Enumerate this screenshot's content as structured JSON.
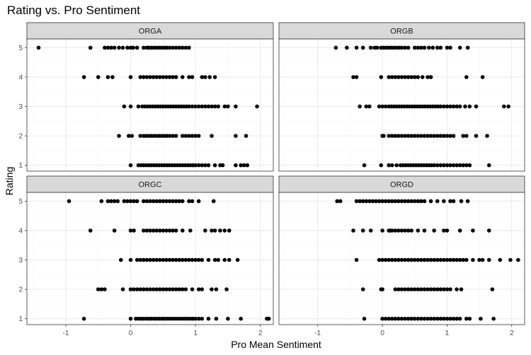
{
  "chart_data": {
    "type": "scatter",
    "title": "Rating vs. Pro Sentiment",
    "xlabel": "Pro Mean Sentiment",
    "ylabel": "Rating",
    "xlim": [
      -1.6,
      2.2
    ],
    "ylim": [
      0.8,
      5.3
    ],
    "x_ticks": [
      -1,
      0,
      1,
      2
    ],
    "x_tick_labels": [
      "-1",
      "0",
      "1",
      "2"
    ],
    "y_ticks": [
      1,
      2,
      3,
      4,
      5
    ],
    "y_tick_labels": [
      "1",
      "2",
      "3",
      "4",
      "5"
    ],
    "grid": true,
    "colors": {
      "point": "#000000",
      "strip_fill": "#d9d9d9",
      "strip_border": "#333333",
      "grid_major": "#ebebeb",
      "grid_minor": "#f4f4f4",
      "panel_border": "#333333"
    },
    "facets": [
      {
        "name": "ORGA",
        "points": [
          {
            "rating": 5,
            "x": [
              -1.42,
              -0.62,
              -0.4,
              -0.35,
              -0.3,
              -0.25,
              -0.18,
              -0.12,
              -0.05,
              0.0,
              0.04,
              0.1,
              0.2,
              0.25,
              0.28,
              0.32,
              0.36,
              0.4,
              0.44,
              0.48,
              0.52,
              0.56,
              0.6,
              0.65,
              0.7,
              0.75,
              0.8,
              0.85,
              0.9
            ]
          },
          {
            "rating": 4,
            "x": [
              -0.72,
              -0.5,
              -0.35,
              -0.28,
              0.0,
              0.15,
              0.2,
              0.25,
              0.3,
              0.35,
              0.4,
              0.45,
              0.5,
              0.55,
              0.6,
              0.65,
              0.7,
              0.8,
              0.9,
              0.95,
              1.1,
              1.15,
              1.22,
              1.3
            ]
          },
          {
            "rating": 3,
            "x": [
              -0.1,
              0.0,
              0.12,
              0.18,
              0.22,
              0.26,
              0.3,
              0.34,
              0.38,
              0.42,
              0.46,
              0.5,
              0.54,
              0.58,
              0.62,
              0.66,
              0.7,
              0.74,
              0.78,
              0.82,
              0.86,
              0.9,
              0.95,
              1.0,
              1.05,
              1.1,
              1.15,
              1.2,
              1.25,
              1.3,
              1.35,
              1.45,
              1.5,
              1.62,
              1.95
            ]
          },
          {
            "rating": 2,
            "x": [
              -0.18,
              -0.03,
              0.02,
              0.15,
              0.2,
              0.24,
              0.28,
              0.32,
              0.36,
              0.4,
              0.44,
              0.48,
              0.52,
              0.56,
              0.6,
              0.65,
              0.7,
              0.8,
              0.85,
              0.9,
              0.95,
              1.0,
              1.05,
              1.25,
              1.62,
              1.78
            ]
          },
          {
            "rating": 1,
            "x": [
              0.0,
              0.12,
              0.16,
              0.2,
              0.24,
              0.28,
              0.32,
              0.36,
              0.4,
              0.44,
              0.48,
              0.52,
              0.56,
              0.6,
              0.64,
              0.68,
              0.72,
              0.76,
              0.8,
              0.84,
              0.88,
              0.92,
              0.96,
              1.0,
              1.05,
              1.1,
              1.15,
              1.2,
              1.3,
              1.38,
              1.42,
              1.62,
              1.7,
              1.75,
              1.8
            ]
          }
        ]
      },
      {
        "name": "ORGB",
        "points": [
          {
            "rating": 5,
            "x": [
              -0.72,
              -0.55,
              -0.4,
              -0.3,
              -0.18,
              -0.12,
              -0.08,
              -0.02,
              0.02,
              0.06,
              0.1,
              0.14,
              0.18,
              0.22,
              0.26,
              0.3,
              0.35,
              0.4,
              0.5,
              0.55,
              0.6,
              0.65,
              0.72,
              0.78,
              0.85,
              0.9,
              1.0,
              1.05,
              1.2,
              1.32
            ]
          },
          {
            "rating": 4,
            "x": [
              -0.45,
              -0.4,
              -0.02,
              0.1,
              0.15,
              0.2,
              0.25,
              0.3,
              0.35,
              0.4,
              0.45,
              0.5,
              0.55,
              0.62,
              0.7,
              0.75,
              1.3,
              1.55
            ]
          },
          {
            "rating": 3,
            "x": [
              -0.35,
              -0.25,
              -0.2,
              -0.05,
              0.0,
              0.05,
              0.1,
              0.14,
              0.18,
              0.22,
              0.26,
              0.3,
              0.34,
              0.38,
              0.42,
              0.46,
              0.5,
              0.54,
              0.58,
              0.62,
              0.66,
              0.7,
              0.74,
              0.78,
              0.82,
              0.86,
              0.9,
              0.95,
              1.0,
              1.05,
              1.1,
              1.15,
              1.2,
              1.28,
              1.35,
              1.45,
              1.88,
              1.95
            ]
          },
          {
            "rating": 2,
            "x": [
              0.0,
              0.02,
              0.1,
              0.15,
              0.2,
              0.25,
              0.3,
              0.35,
              0.4,
              0.45,
              0.5,
              0.55,
              0.6,
              0.65,
              0.7,
              0.75,
              0.8,
              0.85,
              0.9,
              0.95,
              1.0,
              1.05,
              1.1,
              1.25,
              1.3,
              1.45,
              1.62
            ]
          },
          {
            "rating": 1,
            "x": [
              -0.28,
              -0.02,
              0.1,
              0.15,
              0.22,
              0.28,
              0.32,
              0.36,
              0.4,
              0.44,
              0.48,
              0.52,
              0.56,
              0.6,
              0.64,
              0.68,
              0.72,
              0.76,
              0.8,
              0.85,
              0.9,
              0.95,
              1.0,
              1.05,
              1.1,
              1.15,
              1.2,
              1.25,
              1.3,
              1.35,
              1.65
            ]
          }
        ]
      },
      {
        "name": "ORGC",
        "points": [
          {
            "rating": 5,
            "x": [
              -0.95,
              -0.45,
              -0.35,
              -0.3,
              -0.25,
              -0.2,
              -0.1,
              -0.05,
              0.0,
              0.05,
              0.1,
              0.2,
              0.25,
              0.3,
              0.35,
              0.4,
              0.45,
              0.5,
              0.55,
              0.6,
              0.65,
              0.7,
              0.75,
              0.8,
              0.9,
              0.95,
              1.05,
              1.28
            ]
          },
          {
            "rating": 4,
            "x": [
              -0.62,
              -0.25,
              0.0,
              0.05,
              0.2,
              0.25,
              0.3,
              0.35,
              0.4,
              0.45,
              0.5,
              0.55,
              0.6,
              0.65,
              0.7,
              0.8,
              0.92,
              1.15,
              1.25,
              1.3,
              1.38,
              1.45,
              1.52
            ]
          },
          {
            "rating": 3,
            "x": [
              -0.15,
              0.0,
              0.1,
              0.15,
              0.2,
              0.25,
              0.3,
              0.35,
              0.4,
              0.45,
              0.5,
              0.55,
              0.6,
              0.65,
              0.7,
              0.75,
              0.8,
              0.85,
              0.9,
              0.95,
              1.0,
              1.05,
              1.1,
              1.2,
              1.3,
              1.35,
              1.45,
              1.52,
              1.65
            ]
          },
          {
            "rating": 2,
            "x": [
              -0.5,
              -0.45,
              -0.4,
              -0.12,
              0.0,
              0.05,
              0.1,
              0.15,
              0.2,
              0.25,
              0.3,
              0.35,
              0.4,
              0.45,
              0.5,
              0.55,
              0.6,
              0.65,
              0.7,
              0.75,
              0.8,
              0.85,
              0.95,
              1.05,
              1.1,
              1.25,
              1.32,
              1.48
            ]
          },
          {
            "rating": 1,
            "x": [
              -0.72,
              0.0,
              0.08,
              0.12,
              0.16,
              0.2,
              0.24,
              0.28,
              0.32,
              0.36,
              0.4,
              0.44,
              0.48,
              0.52,
              0.56,
              0.6,
              0.64,
              0.68,
              0.72,
              0.76,
              0.8,
              0.84,
              0.88,
              0.92,
              0.96,
              1.0,
              1.05,
              1.1,
              1.2,
              1.32,
              1.5,
              1.7,
              2.1,
              2.13
            ]
          }
        ]
      },
      {
        "name": "ORGD",
        "points": [
          {
            "rating": 5,
            "x": [
              -0.7,
              -0.65,
              -0.4,
              -0.35,
              -0.3,
              -0.25,
              -0.2,
              -0.15,
              -0.1,
              -0.05,
              0.0,
              0.05,
              0.1,
              0.15,
              0.2,
              0.25,
              0.3,
              0.35,
              0.4,
              0.45,
              0.5,
              0.55,
              0.6,
              0.65,
              0.75,
              0.85,
              0.95,
              1.05,
              1.1,
              1.22,
              1.32
            ]
          },
          {
            "rating": 4,
            "x": [
              -0.45,
              -0.3,
              -0.18,
              0.0,
              0.1,
              0.12,
              0.15,
              0.2,
              0.25,
              0.3,
              0.35,
              0.4,
              0.45,
              0.55,
              0.65,
              0.8,
              0.95,
              1.0,
              1.2,
              1.4,
              1.65
            ]
          },
          {
            "rating": 3,
            "x": [
              -0.4,
              -0.05,
              0.0,
              0.05,
              0.1,
              0.15,
              0.2,
              0.25,
              0.3,
              0.35,
              0.4,
              0.45,
              0.5,
              0.55,
              0.6,
              0.65,
              0.7,
              0.75,
              0.8,
              0.85,
              0.9,
              0.95,
              1.0,
              1.05,
              1.1,
              1.15,
              1.2,
              1.25,
              1.3,
              1.4,
              1.5,
              1.55,
              1.65,
              1.82,
              1.98,
              2.1
            ]
          },
          {
            "rating": 2,
            "x": [
              -0.3,
              -0.02,
              0.0,
              0.2,
              0.25,
              0.3,
              0.35,
              0.4,
              0.45,
              0.5,
              0.55,
              0.6,
              0.65,
              0.7,
              0.75,
              0.8,
              0.85,
              0.9,
              0.95,
              1.0,
              1.05,
              1.15,
              1.22,
              1.7
            ]
          },
          {
            "rating": 1,
            "x": [
              -0.28,
              0.0,
              0.05,
              0.1,
              0.15,
              0.2,
              0.25,
              0.3,
              0.35,
              0.4,
              0.45,
              0.5,
              0.55,
              0.6,
              0.65,
              0.7,
              0.75,
              0.8,
              0.85,
              0.9,
              0.95,
              1.0,
              1.05,
              1.1,
              1.15,
              1.2,
              1.3,
              1.35,
              1.52,
              1.72
            ]
          }
        ]
      }
    ]
  }
}
